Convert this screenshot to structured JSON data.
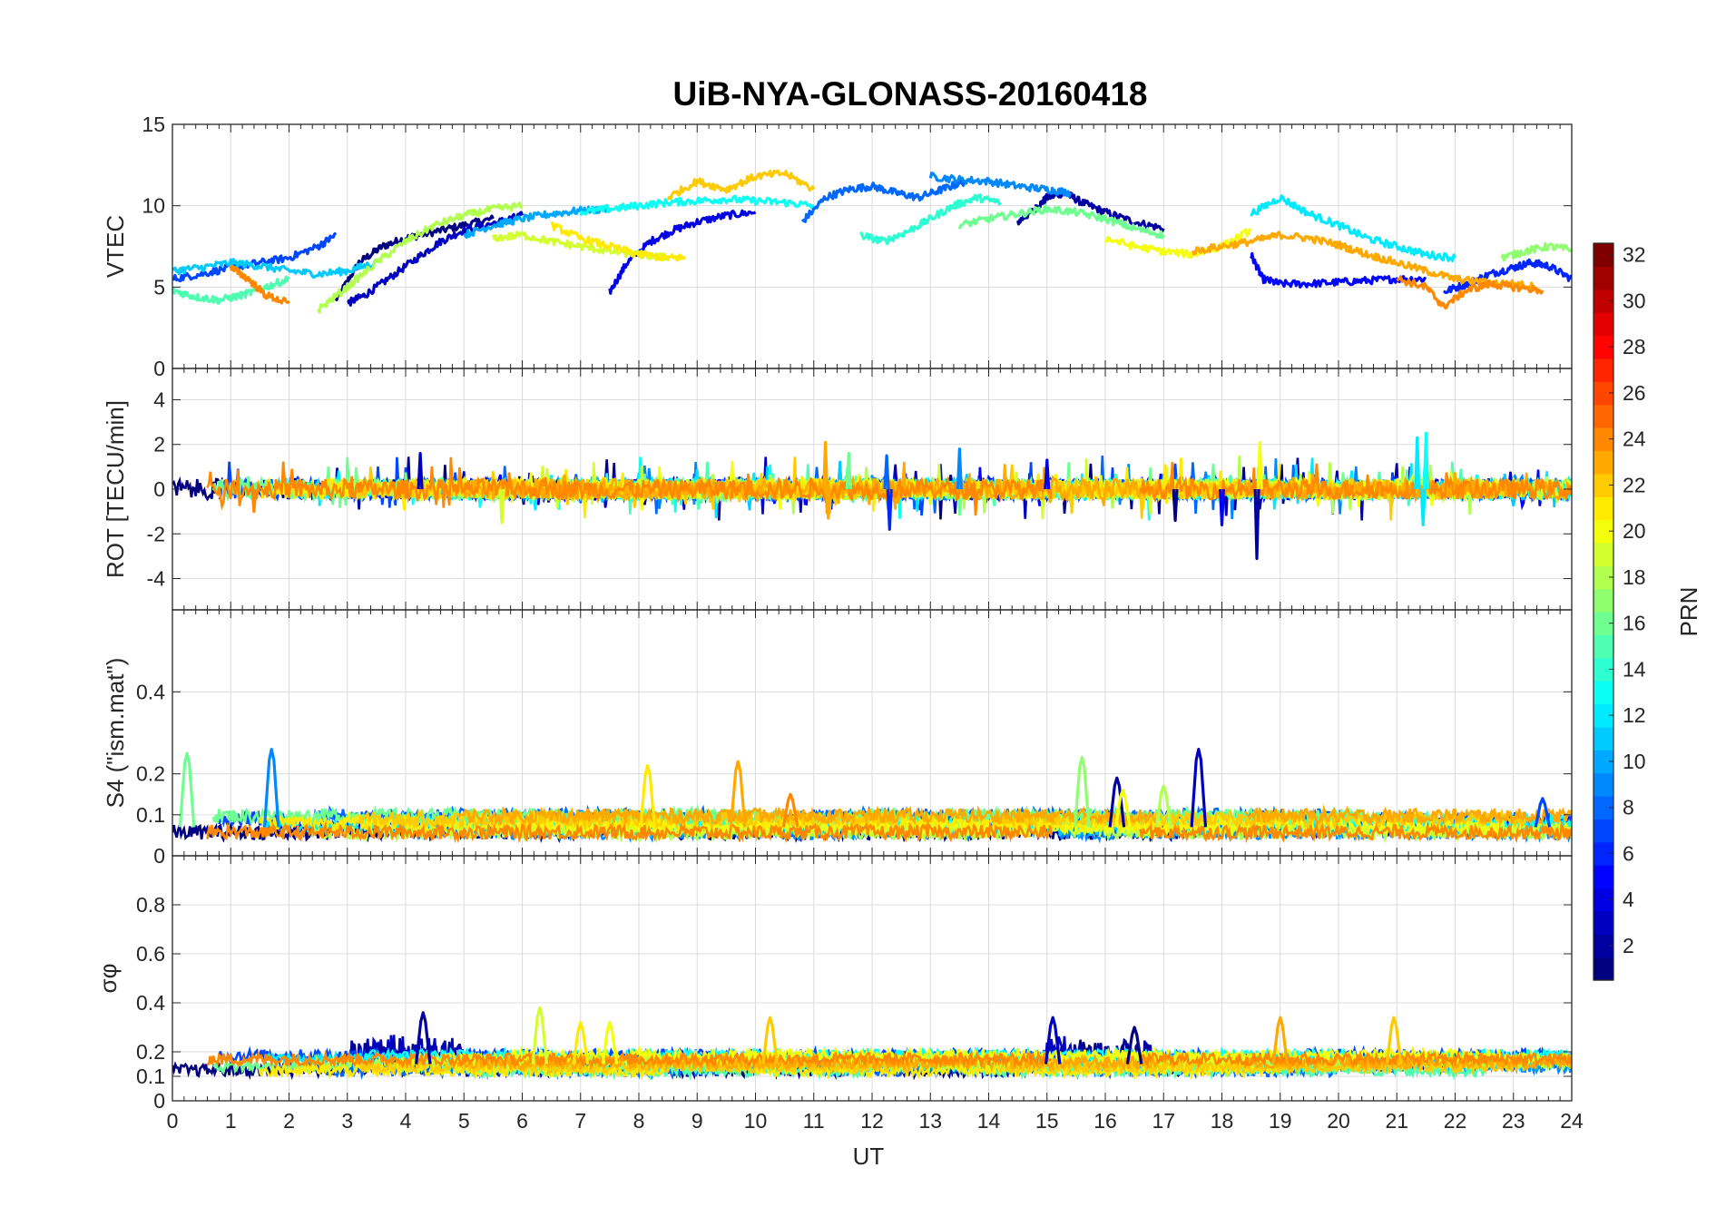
{
  "chart_data": {
    "type": "line",
    "title": "UiB-NYA-GLONASS-20160418",
    "xlabel": "UT",
    "xlim": [
      0,
      24
    ],
    "xticks": [
      "0",
      "1",
      "2",
      "3",
      "4",
      "5",
      "6",
      "7",
      "8",
      "9",
      "10",
      "11",
      "12",
      "13",
      "14",
      "15",
      "16",
      "17",
      "18",
      "19",
      "20",
      "21",
      "22",
      "23",
      "24"
    ],
    "grid": true,
    "panels": [
      {
        "key": "vtec",
        "ylabel": "VTEC",
        "ylim": [
          0,
          15
        ],
        "yticks": [
          "0",
          "5",
          "10",
          "15"
        ],
        "series": [
          {
            "prn": 1,
            "x": [
              2.8,
              3.2,
              3.6,
              4.0,
              4.5,
              5.0,
              5.5
            ],
            "y": [
              4.2,
              6.5,
              7.5,
              8.0,
              8.4,
              8.8,
              9.2
            ]
          },
          {
            "prn": 2,
            "x": [
              14.5,
              14.8,
              15.0,
              15.3,
              15.6,
              16.0,
              16.5,
              17.0
            ],
            "y": [
              9.0,
              9.8,
              10.5,
              10.8,
              10.2,
              9.6,
              9.0,
              8.6
            ]
          },
          {
            "prn": 3,
            "x": [
              3.0,
              3.3,
              3.7,
              4.2,
              4.6,
              5.0,
              5.6,
              6.0
            ],
            "y": [
              4.0,
              4.5,
              5.5,
              6.8,
              7.8,
              8.5,
              9.0,
              9.4
            ]
          },
          {
            "prn": 4,
            "x": [
              7.5,
              7.8,
              8.2,
              8.6,
              9.0,
              9.5,
              10.0
            ],
            "y": [
              4.7,
              6.5,
              7.8,
              8.5,
              9.0,
              9.4,
              9.6
            ]
          },
          {
            "prn": 5,
            "x": [
              18.5,
              18.7,
              19.0,
              19.5,
              20.0,
              20.5,
              21.0,
              21.5
            ],
            "y": [
              7.0,
              5.5,
              5.2,
              5.2,
              5.3,
              5.4,
              5.5,
              5.5
            ]
          },
          {
            "prn": 6,
            "x": [
              21.8,
              22.2,
              22.6,
              23.0,
              23.3,
              23.6,
              24.0
            ],
            "y": [
              4.7,
              5.2,
              5.8,
              6.2,
              6.5,
              6.3,
              5.5
            ]
          },
          {
            "prn": 7,
            "x": [
              0.0,
              0.5,
              1.0,
              1.5,
              2.0,
              2.5,
              2.8
            ],
            "y": [
              5.5,
              5.8,
              6.2,
              6.5,
              6.8,
              7.5,
              8.2
            ]
          },
          {
            "prn": 8,
            "x": [
              10.8,
              11.2,
              11.6,
              12.0,
              12.4,
              12.8,
              13.2,
              13.6
            ],
            "y": [
              9.0,
              10.5,
              11.0,
              11.2,
              10.8,
              10.5,
              11.0,
              11.5
            ]
          },
          {
            "prn": 9,
            "x": [
              13.0,
              13.5,
              14.0,
              14.5,
              15.0,
              15.4
            ],
            "y": [
              11.8,
              11.6,
              11.5,
              11.2,
              11.0,
              10.8
            ]
          },
          {
            "prn": 10,
            "x": [
              5.0,
              5.5,
              6.0,
              6.5,
              7.0,
              7.5
            ],
            "y": [
              8.2,
              8.8,
              9.2,
              9.5,
              9.7,
              9.8
            ]
          },
          {
            "prn": 11,
            "x": [
              0.0,
              0.5,
              1.0,
              1.5,
              2.0,
              2.5,
              3.0,
              3.5
            ],
            "y": [
              6.0,
              6.2,
              6.5,
              6.3,
              6.0,
              5.8,
              6.0,
              6.5
            ]
          },
          {
            "prn": 12,
            "x": [
              18.5,
              19.0,
              19.5,
              20.0,
              20.5,
              21.0,
              21.5,
              22.0
            ],
            "y": [
              9.5,
              10.5,
              9.5,
              8.8,
              8.0,
              7.5,
              7.0,
              6.8
            ]
          },
          {
            "prn": 13,
            "x": [
              7.0,
              7.5,
              8.0,
              8.5,
              9.0,
              9.5,
              10.0,
              10.5,
              11.0
            ],
            "y": [
              9.6,
              9.8,
              10.0,
              10.2,
              10.3,
              10.4,
              10.3,
              10.2,
              10.0
            ]
          },
          {
            "prn": 14,
            "x": [
              11.8,
              12.2,
              12.6,
              13.0,
              13.4,
              13.8,
              14.2
            ],
            "y": [
              8.2,
              7.8,
              8.4,
              9.2,
              10.0,
              10.5,
              10.2
            ]
          },
          {
            "prn": 15,
            "x": [
              0.0,
              0.4,
              0.8,
              1.2,
              1.6,
              2.0
            ],
            "y": [
              4.8,
              4.4,
              4.2,
              4.5,
              5.0,
              5.5
            ]
          },
          {
            "prn": 16,
            "x": [
              13.5,
              14.0,
              14.5,
              15.0,
              15.5,
              16.0,
              16.5,
              17.0
            ],
            "y": [
              8.8,
              9.2,
              9.5,
              9.8,
              9.6,
              9.2,
              8.6,
              8.2
            ]
          },
          {
            "prn": 17,
            "x": [
              22.8,
              23.2,
              23.6,
              24.0
            ],
            "y": [
              6.8,
              7.2,
              7.5,
              7.3
            ]
          },
          {
            "prn": 18,
            "x": [
              2.5,
              3.0,
              3.5,
              4.0,
              4.5,
              5.0,
              5.5,
              6.0
            ],
            "y": [
              3.6,
              5.0,
              6.5,
              7.8,
              8.8,
              9.4,
              9.8,
              10.0
            ]
          },
          {
            "prn": 19,
            "x": [
              5.5,
              6.0,
              6.5,
              7.0,
              7.5,
              8.0,
              8.5
            ],
            "y": [
              8.0,
              8.2,
              7.8,
              7.5,
              7.2,
              7.0,
              6.8
            ]
          },
          {
            "prn": 20,
            "x": [
              16.0,
              16.5,
              17.0,
              17.5,
              18.0,
              18.5
            ],
            "y": [
              8.0,
              7.5,
              7.2,
              7.0,
              7.5,
              8.5
            ]
          },
          {
            "prn": 21,
            "x": [
              6.5,
              7.0,
              7.5,
              8.0,
              8.5,
              8.8
            ],
            "y": [
              8.8,
              8.0,
              7.5,
              7.0,
              6.8,
              6.8
            ]
          },
          {
            "prn": 22,
            "x": [
              8.5,
              9.0,
              9.5,
              10.0,
              10.5,
              11.0
            ],
            "y": [
              10.5,
              11.5,
              11.0,
              11.8,
              12.0,
              11.0
            ]
          },
          {
            "prn": 23,
            "x": [
              17.5,
              18.0,
              18.5,
              19.0,
              19.5,
              20.0,
              20.5,
              21.0,
              21.5,
              22.0,
              22.5,
              23.0,
              23.4
            ],
            "y": [
              7.2,
              7.5,
              7.8,
              8.2,
              8.0,
              7.6,
              7.0,
              6.5,
              6.0,
              5.5,
              5.3,
              5.2,
              5.0
            ]
          },
          {
            "prn": 24,
            "x": [
              21.0,
              21.5,
              21.8,
              22.2,
              22.6,
              23.0,
              23.5
            ],
            "y": [
              5.5,
              5.0,
              3.8,
              4.8,
              5.2,
              5.0,
              4.8
            ]
          },
          {
            "prn": 24,
            "x": [
              1.0,
              1.3,
              1.6,
              2.0
            ],
            "y": [
              6.2,
              5.5,
              4.5,
              4.0
            ]
          }
        ]
      },
      {
        "key": "rot",
        "ylabel": "ROT [TECU/min]",
        "ylim": [
          -5.4,
          5.4
        ],
        "yticks": [
          "4",
          "2",
          "0",
          "-2",
          "-4"
        ],
        "spikes": [
          {
            "prn": 3,
            "x": 4.25,
            "y": 1.6
          },
          {
            "prn": 8,
            "x": 12.25,
            "y": 1.5
          },
          {
            "prn": 9,
            "x": 13.5,
            "y": 1.8
          },
          {
            "prn": 6,
            "x": 12.3,
            "y": -1.8
          },
          {
            "prn": 5,
            "x": 18.0,
            "y": -1.6
          },
          {
            "prn": 2,
            "x": 18.6,
            "y": -3.1
          },
          {
            "prn": 20,
            "x": 18.65,
            "y": 2.1
          },
          {
            "prn": 12,
            "x": 21.35,
            "y": 2.3
          },
          {
            "prn": 13,
            "x": 21.5,
            "y": 2.5
          },
          {
            "prn": 12,
            "x": 21.45,
            "y": -1.6
          },
          {
            "prn": 23,
            "x": 11.2,
            "y": 2.1
          },
          {
            "prn": 23,
            "x": 11.25,
            "y": -1.3
          },
          {
            "prn": 16,
            "x": 11.6,
            "y": 1.6
          },
          {
            "prn": 19,
            "x": 5.65,
            "y": -1.5
          },
          {
            "prn": 4,
            "x": 15.0,
            "y": 1.3
          },
          {
            "prn": 1,
            "x": 17.2,
            "y": -1.4
          },
          {
            "prn": 24,
            "x": 1.4,
            "y": -1.0
          }
        ]
      },
      {
        "key": "s4",
        "ylabel": "S4 (\"ism.mat\")",
        "ylim": [
          0,
          0.6
        ],
        "yticks": [
          "0",
          "0.1",
          "0.2",
          "0.4"
        ],
        "peaks": [
          {
            "prn": 16,
            "x": 0.25,
            "y": 0.25
          },
          {
            "prn": 9,
            "x": 1.7,
            "y": 0.26
          },
          {
            "prn": 21,
            "x": 8.15,
            "y": 0.22
          },
          {
            "prn": 23,
            "x": 9.7,
            "y": 0.23
          },
          {
            "prn": 24,
            "x": 10.6,
            "y": 0.15
          },
          {
            "prn": 17,
            "x": 15.6,
            "y": 0.24
          },
          {
            "prn": 2,
            "x": 16.2,
            "y": 0.19
          },
          {
            "prn": 20,
            "x": 16.3,
            "y": 0.16
          },
          {
            "prn": 18,
            "x": 17.0,
            "y": 0.17
          },
          {
            "prn": 3,
            "x": 17.6,
            "y": 0.26
          },
          {
            "prn": 7,
            "x": 23.5,
            "y": 0.14
          }
        ]
      },
      {
        "key": "sigma",
        "ylabel": "σφ",
        "ylim": [
          0,
          1
        ],
        "yticks": [
          "0",
          "0.1",
          "0.2",
          "0.4",
          "0.6",
          "0.8"
        ],
        "peaks": [
          {
            "prn": 2,
            "x": 4.3,
            "y": 0.36
          },
          {
            "prn": 19,
            "x": 6.3,
            "y": 0.38
          },
          {
            "prn": 21,
            "x": 7.0,
            "y": 0.32
          },
          {
            "prn": 20,
            "x": 7.5,
            "y": 0.32
          },
          {
            "prn": 22,
            "x": 10.25,
            "y": 0.34
          },
          {
            "prn": 3,
            "x": 15.1,
            "y": 0.34
          },
          {
            "prn": 23,
            "x": 19.0,
            "y": 0.34
          },
          {
            "prn": 22,
            "x": 20.95,
            "y": 0.34
          },
          {
            "prn": 1,
            "x": 16.5,
            "y": 0.3
          }
        ]
      }
    ],
    "colorbar": {
      "label": "PRN",
      "min": 1,
      "max": 32,
      "ticks": [
        "2",
        "4",
        "6",
        "8",
        "10",
        "12",
        "14",
        "16",
        "18",
        "20",
        "22",
        "24",
        "26",
        "28",
        "30",
        "32"
      ],
      "colormap": "jet"
    }
  }
}
